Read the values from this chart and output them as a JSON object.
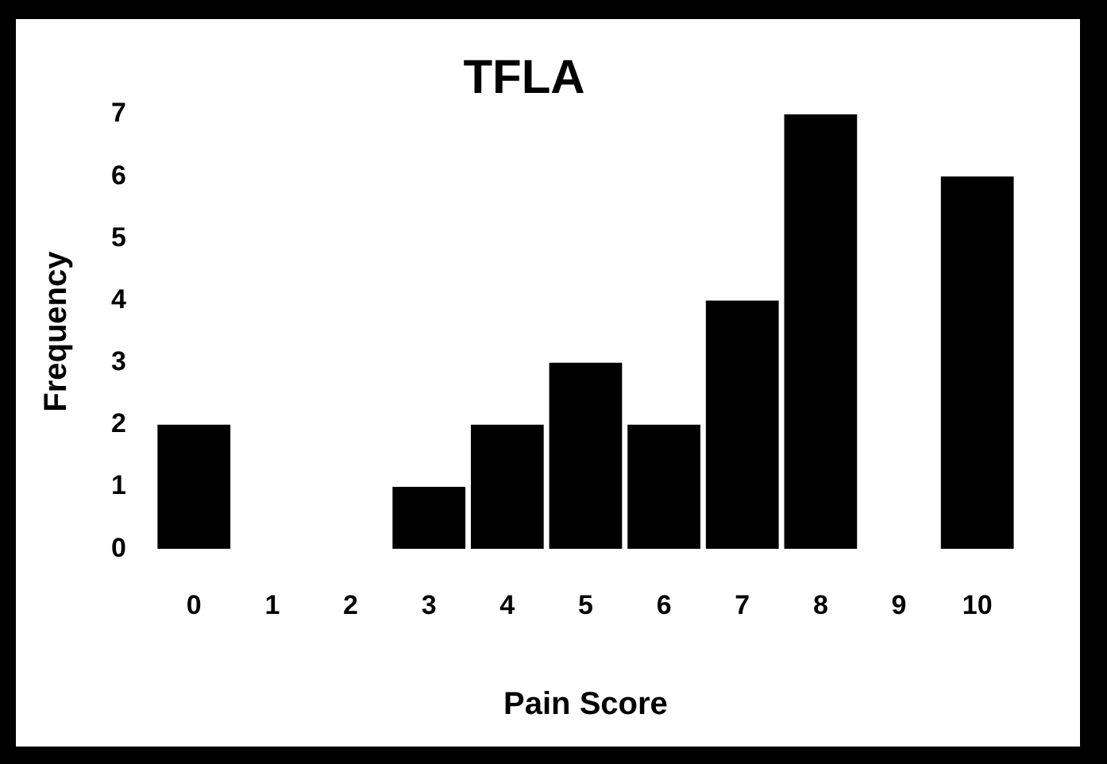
{
  "chart_data": {
    "type": "bar",
    "title": "TFLA",
    "xlabel": "Pain Score",
    "ylabel": "Frequency",
    "categories": [
      "0",
      "1",
      "2",
      "3",
      "4",
      "5",
      "6",
      "7",
      "8",
      "9",
      "10"
    ],
    "values": [
      2,
      0,
      0,
      1,
      2,
      3,
      2,
      4,
      7,
      0,
      6
    ],
    "color": "#000000",
    "ylim": [
      0,
      7
    ],
    "yticks": [
      0,
      1,
      2,
      3,
      4,
      5,
      6,
      7
    ],
    "grid": false
  }
}
